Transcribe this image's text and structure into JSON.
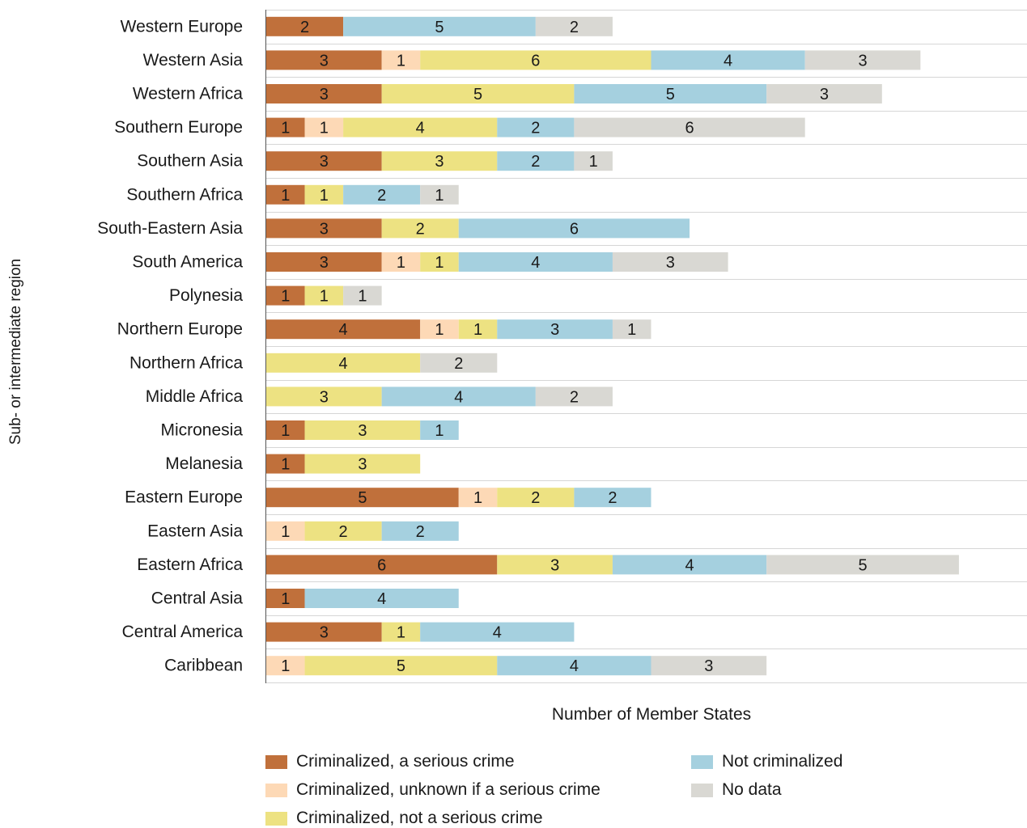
{
  "chart_data": {
    "type": "bar",
    "orientation": "horizontal",
    "stacked": true,
    "title": "",
    "xlabel": "Number of Member States",
    "ylabel": "Sub- or intermediate region",
    "xlim": [
      0,
      20
    ],
    "grid": "horizontal lines between categories",
    "legend_position": "bottom",
    "categories": [
      "Western Europe",
      "Western Asia",
      "Western Africa",
      "Southern Europe",
      "Southern Asia",
      "Southern Africa",
      "South-Eastern Asia",
      "South America",
      "Polynesia",
      "Northern Europe",
      "Northern Africa",
      "Middle Africa",
      "Micronesia",
      "Melanesia",
      "Eastern Europe",
      "Eastern Asia",
      "Eastern Africa",
      "Central Asia",
      "Central America",
      "Caribbean"
    ],
    "series": [
      {
        "name": "Criminalized, a serious crime",
        "color": "#c0703b",
        "values": [
          2,
          3,
          3,
          1,
          3,
          1,
          3,
          3,
          1,
          4,
          0,
          0,
          1,
          1,
          5,
          0,
          6,
          1,
          3,
          0
        ]
      },
      {
        "name": "Criminalized, unknown if a serious crime",
        "color": "#fdd9b6",
        "values": [
          0,
          1,
          0,
          1,
          0,
          0,
          0,
          1,
          0,
          1,
          0,
          0,
          0,
          0,
          1,
          1,
          0,
          0,
          0,
          1
        ]
      },
      {
        "name": "Criminalized, not a serious crime",
        "color": "#ede282",
        "values": [
          0,
          6,
          5,
          4,
          3,
          1,
          2,
          1,
          1,
          1,
          4,
          3,
          3,
          3,
          2,
          2,
          3,
          0,
          1,
          5
        ]
      },
      {
        "name": "Not criminalized",
        "color": "#a5d0df",
        "values": [
          5,
          4,
          5,
          2,
          2,
          2,
          6,
          4,
          0,
          3,
          0,
          4,
          1,
          0,
          2,
          2,
          4,
          4,
          4,
          4
        ]
      },
      {
        "name": "No data",
        "color": "#d9d8d3",
        "values": [
          2,
          3,
          3,
          6,
          1,
          1,
          0,
          3,
          1,
          1,
          2,
          2,
          0,
          0,
          0,
          0,
          5,
          0,
          0,
          3
        ]
      }
    ]
  }
}
